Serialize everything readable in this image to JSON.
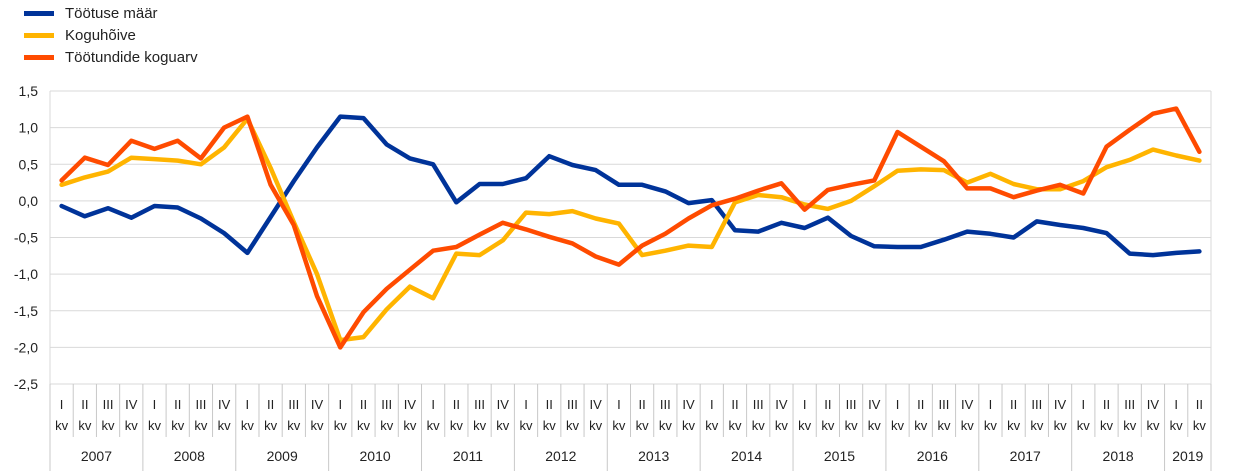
{
  "chart_data": {
    "type": "line",
    "ylim": [
      -2.5,
      1.5
    ],
    "yticks": [
      1.5,
      1.0,
      0.5,
      0.0,
      -0.5,
      -1.0,
      -1.5,
      -2.0,
      -2.5
    ],
    "ytick_labels": [
      "1,5",
      "1,0",
      "0,5",
      "0,0",
      "-0,5",
      "-1,0",
      "-1,5",
      "-2,0",
      "-2,5"
    ],
    "grid": true,
    "legend_position": "top-left",
    "quarter_labels": [
      "I",
      "II",
      "III",
      "IV"
    ],
    "quarter_suffix": "kv",
    "years": [
      {
        "label": "2007",
        "quarters": 4
      },
      {
        "label": "2008",
        "quarters": 4
      },
      {
        "label": "2009",
        "quarters": 4
      },
      {
        "label": "2010",
        "quarters": 4
      },
      {
        "label": "2011",
        "quarters": 4
      },
      {
        "label": "2012",
        "quarters": 4
      },
      {
        "label": "2013",
        "quarters": 4
      },
      {
        "label": "2014",
        "quarters": 4
      },
      {
        "label": "2015",
        "quarters": 4
      },
      {
        "label": "2016",
        "quarters": 4
      },
      {
        "label": "2017",
        "quarters": 4
      },
      {
        "label": "2018",
        "quarters": 4
      },
      {
        "label": "2019",
        "quarters": 2
      }
    ],
    "series": [
      {
        "name": "Töötuse määr",
        "color": "#003399",
        "values": [
          -0.07,
          -0.21,
          -0.1,
          -0.23,
          -0.07,
          -0.09,
          -0.24,
          -0.44,
          -0.71,
          -0.22,
          0.27,
          0.73,
          1.15,
          1.13,
          0.77,
          0.58,
          0.5,
          -0.02,
          0.23,
          0.23,
          0.31,
          0.61,
          0.49,
          0.42,
          0.22,
          0.22,
          0.13,
          -0.03,
          0.01,
          -0.4,
          -0.42,
          -0.3,
          -0.37,
          -0.23,
          -0.48,
          -0.62,
          -0.63,
          -0.63,
          -0.53,
          -0.42,
          -0.45,
          -0.5,
          -0.28,
          -0.33,
          -0.37,
          -0.44,
          -0.72,
          -0.74,
          -0.71,
          -0.69
        ]
      },
      {
        "name": "Koguhõive",
        "color": "#FFB400",
        "values": [
          0.22,
          0.32,
          0.4,
          0.59,
          0.57,
          0.55,
          0.5,
          0.73,
          1.12,
          0.45,
          -0.29,
          -1.0,
          -1.9,
          -1.86,
          -1.48,
          -1.17,
          -1.33,
          -0.72,
          -0.74,
          -0.54,
          -0.16,
          -0.18,
          -0.14,
          -0.24,
          -0.31,
          -0.74,
          -0.68,
          -0.61,
          -0.63,
          -0.02,
          0.08,
          0.05,
          -0.05,
          -0.11,
          0.0,
          0.2,
          0.41,
          0.43,
          0.42,
          0.25,
          0.37,
          0.23,
          0.16,
          0.16,
          0.27,
          0.46,
          0.56,
          0.7,
          0.62,
          0.55
        ]
      },
      {
        "name": "Töötundide koguarv",
        "color": "#FF4B00",
        "values": [
          0.28,
          0.59,
          0.49,
          0.82,
          0.71,
          0.82,
          0.58,
          1.0,
          1.15,
          0.22,
          -0.33,
          -1.3,
          -2.0,
          -1.52,
          -1.2,
          -0.94,
          -0.68,
          -0.63,
          -0.46,
          -0.3,
          -0.39,
          -0.49,
          -0.58,
          -0.76,
          -0.87,
          -0.61,
          -0.45,
          -0.24,
          -0.06,
          0.03,
          0.14,
          0.24,
          -0.12,
          0.15,
          0.22,
          0.28,
          0.94,
          0.74,
          0.54,
          0.17,
          0.17,
          0.05,
          0.14,
          0.22,
          0.1,
          0.74,
          0.97,
          1.19,
          1.26,
          0.67
        ]
      }
    ]
  }
}
